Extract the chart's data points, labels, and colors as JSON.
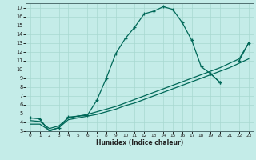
{
  "xlabel": "Humidex (Indice chaleur)",
  "bg_color": "#c4ece8",
  "grid_color": "#a8d8d0",
  "line_color": "#006858",
  "xlim": [
    0,
    23
  ],
  "ylim": [
    3,
    17.5
  ],
  "xticks": [
    0,
    1,
    2,
    3,
    4,
    5,
    6,
    7,
    8,
    9,
    10,
    11,
    12,
    13,
    14,
    15,
    16,
    17,
    18,
    19,
    20,
    21,
    22,
    23
  ],
  "yticks": [
    3,
    4,
    5,
    6,
    7,
    8,
    9,
    10,
    11,
    12,
    13,
    14,
    15,
    16,
    17
  ],
  "curve1_x": [
    0,
    1,
    2,
    3,
    4,
    5,
    6,
    7,
    8,
    9,
    10,
    11,
    12,
    13,
    14,
    15,
    16,
    17,
    18,
    19,
    20
  ],
  "curve1_y": [
    4.5,
    4.4,
    3.0,
    3.4,
    4.6,
    4.7,
    4.8,
    6.5,
    9.0,
    11.8,
    13.5,
    14.8,
    16.3,
    16.6,
    17.1,
    16.8,
    15.3,
    13.3,
    10.3,
    9.5,
    8.5
  ],
  "curve2_x": [
    0,
    1,
    2,
    3,
    4,
    5,
    6,
    7,
    8,
    9,
    10,
    11,
    12,
    13,
    14,
    15,
    16,
    17,
    18,
    19,
    20,
    21,
    22,
    23
  ],
  "curve2_y": [
    3.8,
    3.8,
    3.1,
    3.4,
    4.3,
    4.5,
    4.7,
    4.9,
    5.2,
    5.5,
    5.9,
    6.2,
    6.6,
    7.0,
    7.4,
    7.8,
    8.2,
    8.6,
    9.0,
    9.4,
    9.8,
    10.2,
    10.7,
    11.2
  ],
  "curve3_x": [
    0,
    1,
    2,
    3,
    4,
    5,
    6,
    7,
    8,
    9,
    10,
    11,
    12,
    13,
    14,
    15,
    16,
    17,
    18,
    19,
    20,
    21,
    22,
    23
  ],
  "curve3_y": [
    4.2,
    4.1,
    3.3,
    3.6,
    4.5,
    4.7,
    4.9,
    5.2,
    5.5,
    5.8,
    6.2,
    6.6,
    7.0,
    7.4,
    7.8,
    8.2,
    8.6,
    9.0,
    9.4,
    9.8,
    10.2,
    10.7,
    11.2,
    13.0
  ],
  "curve4_x": [
    19,
    20,
    21,
    22,
    23
  ],
  "curve4_y": [
    9.5,
    8.5,
    null,
    11.0,
    13.0
  ]
}
